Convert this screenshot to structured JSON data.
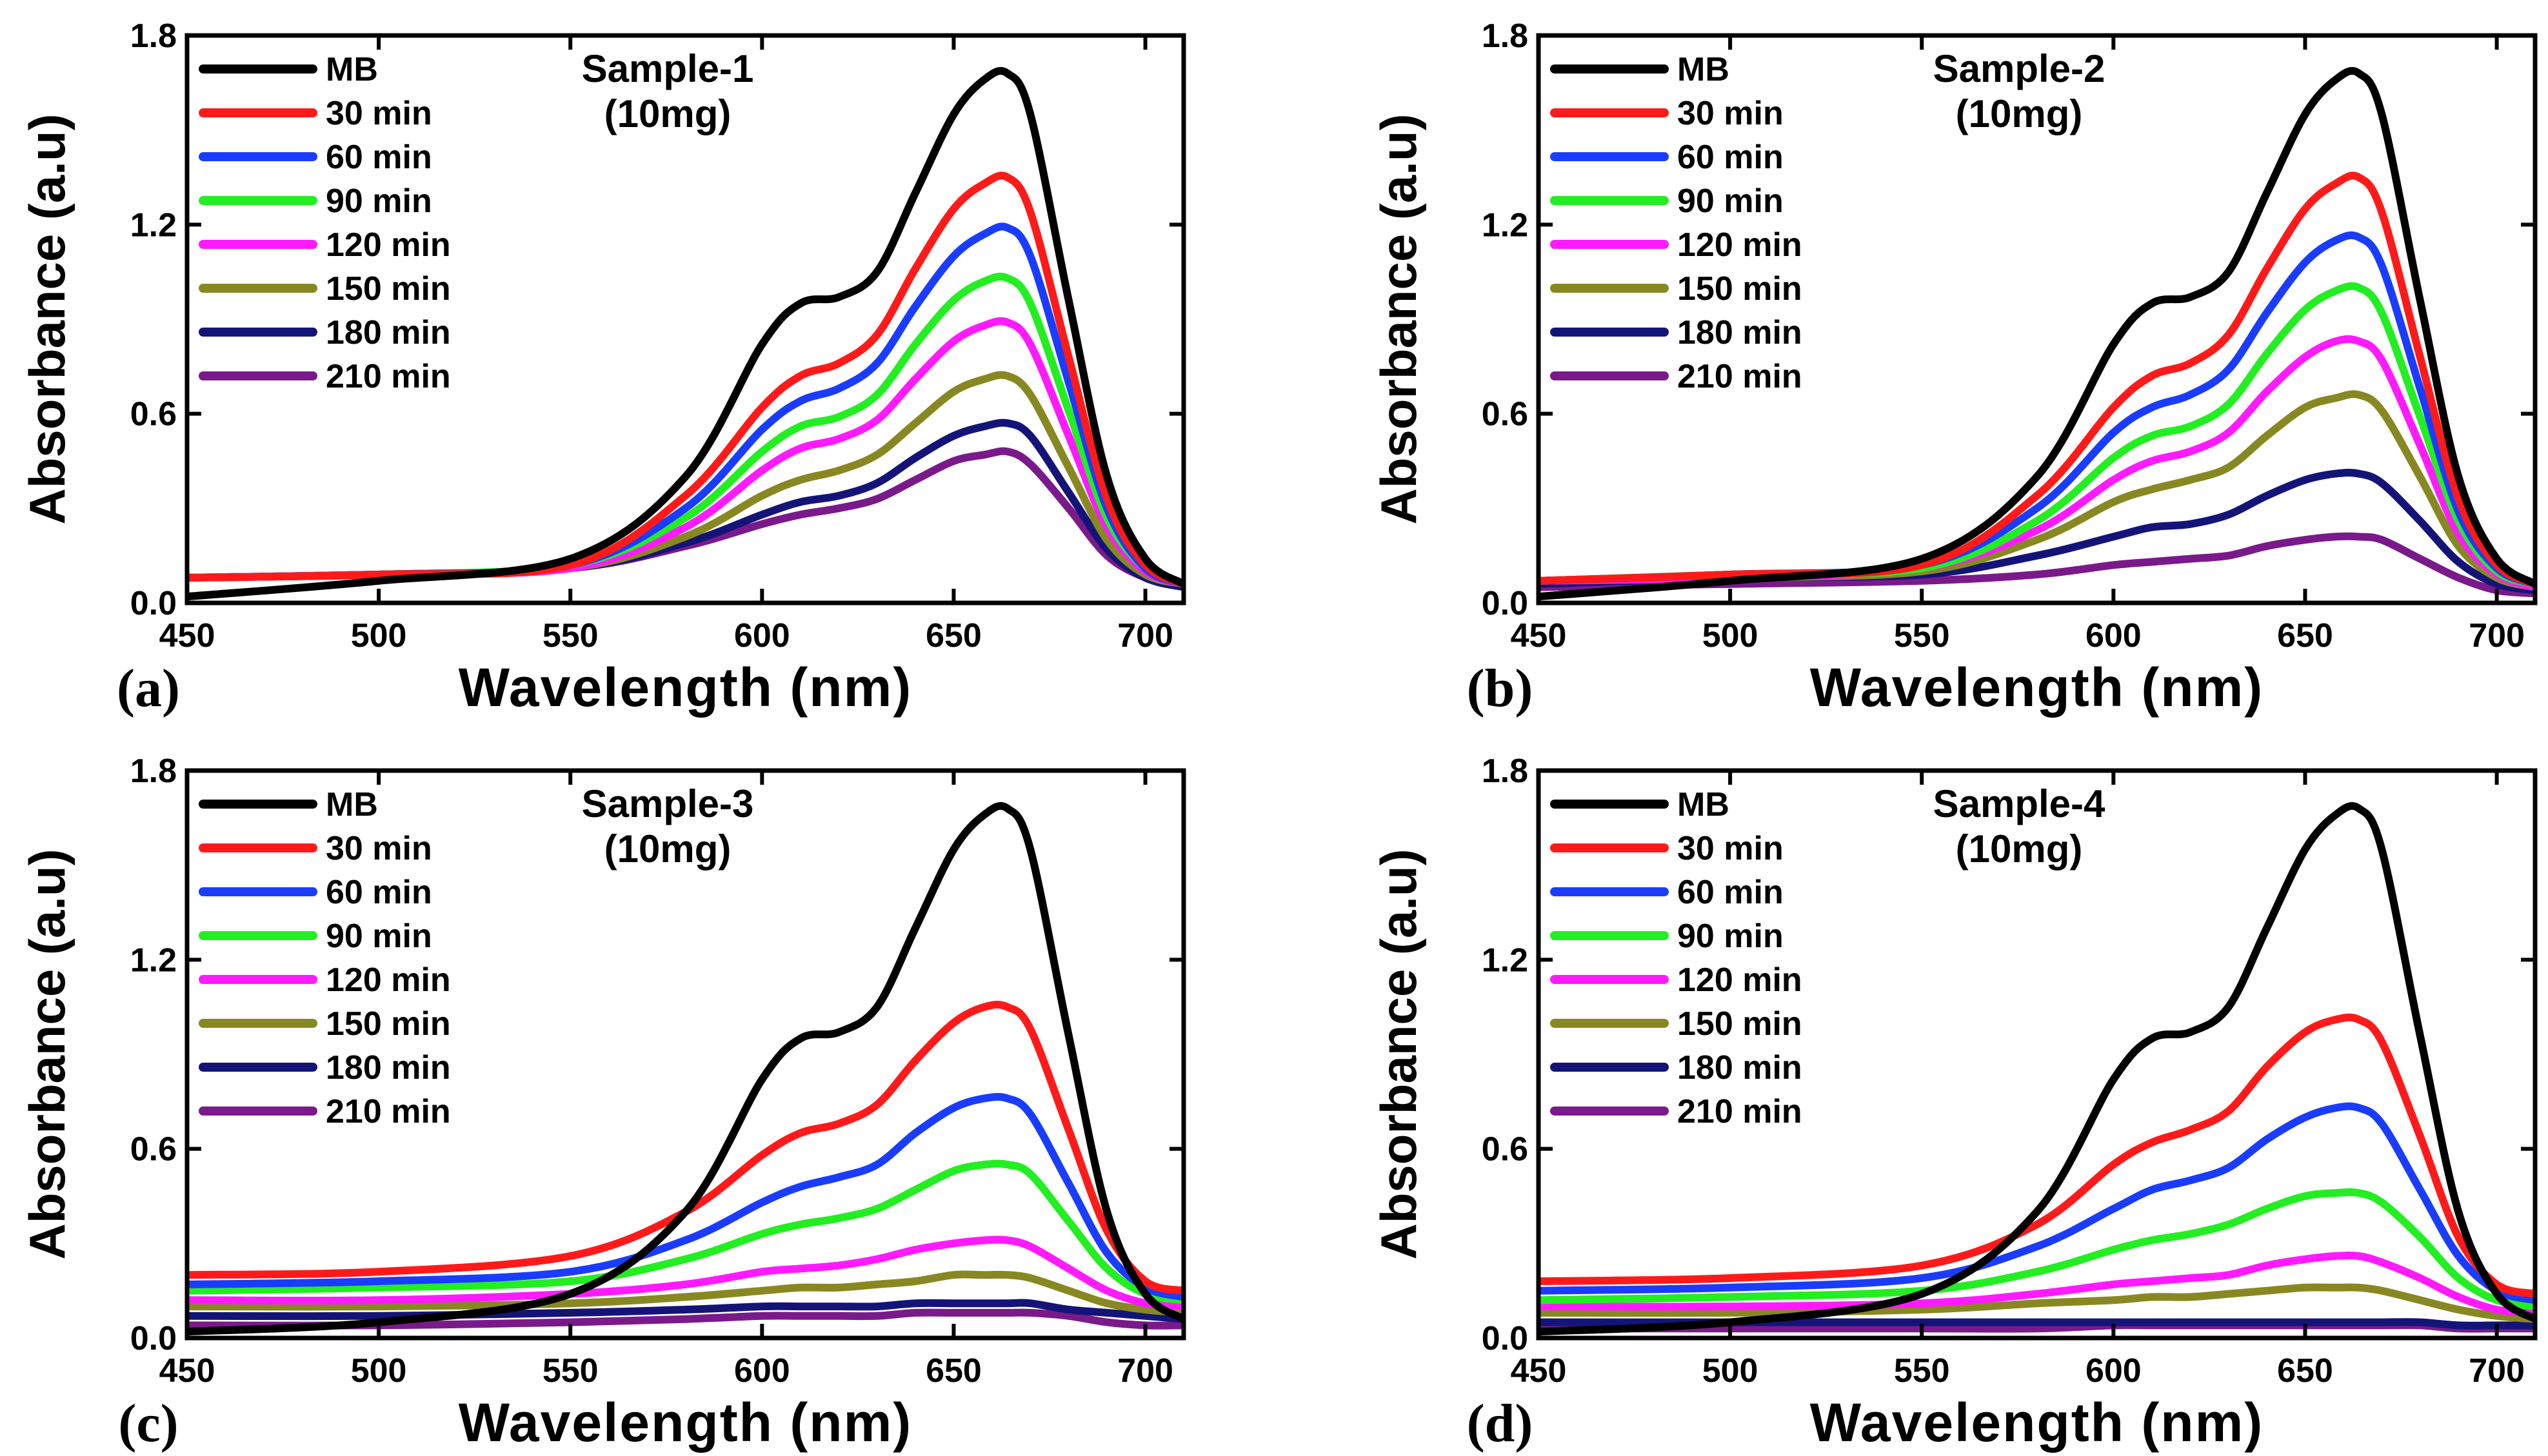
{
  "chart_data": [
    {
      "type": "line",
      "panel_label": "(a)",
      "title": "Sample-1",
      "subtitle": "(10mg)",
      "xlabel": "Wavelength (nm)",
      "ylabel": "Absorbance (a.u)",
      "xlim": [
        450,
        710
      ],
      "ylim": [
        0,
        1.8
      ],
      "xticks": [
        "450",
        "500",
        "550",
        "600",
        "650",
        "700"
      ],
      "yticks": [
        "0.0",
        "0.6",
        "1.2",
        "1.8"
      ],
      "legend_position": "top-left",
      "x": [
        450,
        500,
        550,
        580,
        600,
        610,
        620,
        630,
        640,
        650,
        658,
        664,
        670,
        680,
        690,
        700,
        710
      ],
      "series": [
        {
          "name": "MB",
          "color": "#000000",
          "values": [
            0.02,
            0.07,
            0.14,
            0.4,
            0.82,
            0.95,
            0.97,
            1.05,
            1.3,
            1.55,
            1.66,
            1.68,
            1.55,
            0.96,
            0.4,
            0.14,
            0.06
          ]
        },
        {
          "name": "30 min",
          "color": "#ff1a1a",
          "values": [
            0.08,
            0.09,
            0.12,
            0.34,
            0.62,
            0.72,
            0.76,
            0.85,
            1.06,
            1.25,
            1.33,
            1.35,
            1.24,
            0.78,
            0.33,
            0.12,
            0.06
          ]
        },
        {
          "name": "60 min",
          "color": "#1a3cff",
          "values": [
            0.08,
            0.09,
            0.12,
            0.3,
            0.55,
            0.64,
            0.68,
            0.76,
            0.94,
            1.1,
            1.17,
            1.19,
            1.1,
            0.7,
            0.3,
            0.11,
            0.06
          ]
        },
        {
          "name": "90 min",
          "color": "#22ee22",
          "values": [
            0.08,
            0.09,
            0.12,
            0.27,
            0.48,
            0.56,
            0.59,
            0.66,
            0.82,
            0.96,
            1.02,
            1.03,
            0.95,
            0.61,
            0.27,
            0.11,
            0.06
          ]
        },
        {
          "name": "120 min",
          "color": "#ff1aff",
          "values": [
            0.08,
            0.09,
            0.11,
            0.24,
            0.42,
            0.49,
            0.52,
            0.58,
            0.71,
            0.83,
            0.88,
            0.89,
            0.82,
            0.53,
            0.24,
            0.1,
            0.06
          ]
        },
        {
          "name": "150 min",
          "color": "#888822",
          "values": [
            0.08,
            0.09,
            0.11,
            0.21,
            0.34,
            0.39,
            0.42,
            0.47,
            0.57,
            0.67,
            0.71,
            0.72,
            0.66,
            0.43,
            0.2,
            0.09,
            0.06
          ]
        },
        {
          "name": "180 min",
          "color": "#141478",
          "values": [
            0.08,
            0.09,
            0.11,
            0.19,
            0.28,
            0.32,
            0.34,
            0.38,
            0.46,
            0.53,
            0.56,
            0.57,
            0.53,
            0.35,
            0.17,
            0.08,
            0.05
          ]
        },
        {
          "name": "210 min",
          "color": "#7a1a8a",
          "values": [
            0.08,
            0.09,
            0.11,
            0.18,
            0.25,
            0.28,
            0.3,
            0.33,
            0.39,
            0.45,
            0.47,
            0.48,
            0.44,
            0.3,
            0.15,
            0.08,
            0.05
          ]
        }
      ]
    },
    {
      "type": "line",
      "panel_label": "(b)",
      "title": "Sample-2",
      "subtitle": "(10mg)",
      "xlabel": "Wavelength (nm)",
      "ylabel": "Absorbance (a.u)",
      "xlim": [
        450,
        710
      ],
      "ylim": [
        0,
        1.8
      ],
      "xticks": [
        "450",
        "500",
        "550",
        "600",
        "650",
        "700"
      ],
      "yticks": [
        "0.0",
        "0.6",
        "1.2",
        "1.8"
      ],
      "legend_position": "top-left",
      "x": [
        450,
        500,
        550,
        580,
        600,
        610,
        620,
        630,
        640,
        650,
        658,
        664,
        670,
        680,
        690,
        700,
        710
      ],
      "series": [
        {
          "name": "MB",
          "color": "#000000",
          "values": [
            0.02,
            0.07,
            0.14,
            0.4,
            0.82,
            0.95,
            0.97,
            1.05,
            1.3,
            1.55,
            1.66,
            1.68,
            1.55,
            0.96,
            0.4,
            0.14,
            0.06
          ]
        },
        {
          "name": "30 min",
          "color": "#ff1a1a",
          "values": [
            0.07,
            0.09,
            0.12,
            0.34,
            0.62,
            0.72,
            0.76,
            0.85,
            1.06,
            1.25,
            1.33,
            1.35,
            1.24,
            0.78,
            0.33,
            0.12,
            0.06
          ]
        },
        {
          "name": "60 min",
          "color": "#1a3cff",
          "values": [
            0.07,
            0.09,
            0.12,
            0.3,
            0.54,
            0.62,
            0.66,
            0.74,
            0.92,
            1.08,
            1.15,
            1.16,
            1.07,
            0.68,
            0.29,
            0.11,
            0.06
          ]
        },
        {
          "name": "90 min",
          "color": "#22ee22",
          "values": [
            0.07,
            0.09,
            0.11,
            0.26,
            0.46,
            0.53,
            0.56,
            0.63,
            0.79,
            0.93,
            0.99,
            1.0,
            0.92,
            0.59,
            0.26,
            0.1,
            0.06
          ]
        },
        {
          "name": "120 min",
          "color": "#ff1aff",
          "values": [
            0.07,
            0.08,
            0.11,
            0.23,
            0.39,
            0.45,
            0.48,
            0.54,
            0.67,
            0.78,
            0.83,
            0.83,
            0.77,
            0.5,
            0.22,
            0.09,
            0.05
          ]
        },
        {
          "name": "150 min",
          "color": "#888822",
          "values": [
            0.07,
            0.08,
            0.1,
            0.2,
            0.32,
            0.36,
            0.39,
            0.43,
            0.53,
            0.62,
            0.65,
            0.66,
            0.61,
            0.4,
            0.18,
            0.08,
            0.05
          ]
        },
        {
          "name": "180 min",
          "color": "#141478",
          "values": [
            0.06,
            0.08,
            0.09,
            0.15,
            0.21,
            0.24,
            0.25,
            0.28,
            0.34,
            0.39,
            0.41,
            0.41,
            0.38,
            0.26,
            0.13,
            0.06,
            0.04
          ]
        },
        {
          "name": "210 min",
          "color": "#7a1a8a",
          "values": [
            0.05,
            0.06,
            0.07,
            0.09,
            0.12,
            0.13,
            0.14,
            0.15,
            0.18,
            0.2,
            0.21,
            0.21,
            0.2,
            0.14,
            0.08,
            0.04,
            0.03
          ]
        }
      ]
    },
    {
      "type": "line",
      "panel_label": "(c)",
      "title": "Sample-3",
      "subtitle": "(10mg)",
      "xlabel": "Wavelength (nm)",
      "ylabel": "Absorbance (a.u)",
      "xlim": [
        450,
        710
      ],
      "ylim": [
        0,
        1.8
      ],
      "xticks": [
        "450",
        "500",
        "550",
        "600",
        "650",
        "700"
      ],
      "yticks": [
        "0.0",
        "0.6",
        "1.2",
        "1.8"
      ],
      "legend_position": "top-left",
      "x": [
        450,
        500,
        550,
        580,
        600,
        610,
        620,
        630,
        640,
        650,
        658,
        664,
        670,
        680,
        690,
        700,
        710
      ],
      "series": [
        {
          "name": "MB",
          "color": "#000000",
          "values": [
            0.02,
            0.05,
            0.14,
            0.4,
            0.82,
            0.95,
            0.97,
            1.05,
            1.3,
            1.55,
            1.66,
            1.68,
            1.55,
            0.96,
            0.4,
            0.14,
            0.06
          ]
        },
        {
          "name": "30 min",
          "color": "#ff1a1a",
          "values": [
            0.2,
            0.21,
            0.26,
            0.4,
            0.58,
            0.65,
            0.68,
            0.74,
            0.88,
            1.0,
            1.05,
            1.05,
            0.98,
            0.66,
            0.34,
            0.18,
            0.15
          ]
        },
        {
          "name": "60 min",
          "color": "#1a3cff",
          "values": [
            0.17,
            0.18,
            0.21,
            0.31,
            0.43,
            0.48,
            0.51,
            0.55,
            0.65,
            0.73,
            0.76,
            0.76,
            0.71,
            0.49,
            0.27,
            0.16,
            0.13
          ]
        },
        {
          "name": "90 min",
          "color": "#22ee22",
          "values": [
            0.15,
            0.16,
            0.18,
            0.25,
            0.33,
            0.36,
            0.38,
            0.41,
            0.47,
            0.53,
            0.55,
            0.55,
            0.52,
            0.37,
            0.22,
            0.14,
            0.12
          ]
        },
        {
          "name": "120 min",
          "color": "#ff1aff",
          "values": [
            0.12,
            0.12,
            0.14,
            0.17,
            0.21,
            0.22,
            0.23,
            0.25,
            0.28,
            0.3,
            0.31,
            0.31,
            0.29,
            0.22,
            0.15,
            0.11,
            0.1
          ]
        },
        {
          "name": "150 min",
          "color": "#888822",
          "values": [
            0.1,
            0.1,
            0.11,
            0.13,
            0.15,
            0.16,
            0.16,
            0.17,
            0.18,
            0.2,
            0.2,
            0.2,
            0.19,
            0.15,
            0.11,
            0.09,
            0.08
          ]
        },
        {
          "name": "180 min",
          "color": "#141478",
          "values": [
            0.07,
            0.07,
            0.08,
            0.09,
            0.1,
            0.1,
            0.1,
            0.1,
            0.11,
            0.11,
            0.11,
            0.11,
            0.11,
            0.09,
            0.08,
            0.07,
            0.06
          ]
        },
        {
          "name": "210 min",
          "color": "#7a1a8a",
          "values": [
            0.04,
            0.04,
            0.05,
            0.06,
            0.07,
            0.07,
            0.07,
            0.07,
            0.08,
            0.08,
            0.08,
            0.08,
            0.08,
            0.07,
            0.05,
            0.04,
            0.04
          ]
        }
      ]
    },
    {
      "type": "line",
      "panel_label": "(d)",
      "title": "Sample-4",
      "subtitle": "(10mg)",
      "xlabel": "Wavelength (nm)",
      "ylabel": "Absorbance (a.u)",
      "xlim": [
        450,
        710
      ],
      "ylim": [
        0,
        1.8
      ],
      "xticks": [
        "450",
        "500",
        "550",
        "600",
        "650",
        "700"
      ],
      "yticks": [
        "0.0",
        "0.6",
        "1.2",
        "1.8"
      ],
      "legend_position": "top-left",
      "x": [
        450,
        500,
        550,
        580,
        600,
        610,
        620,
        630,
        640,
        650,
        658,
        664,
        670,
        680,
        690,
        700,
        710
      ],
      "series": [
        {
          "name": "MB",
          "color": "#000000",
          "values": [
            0.02,
            0.05,
            0.14,
            0.4,
            0.82,
            0.95,
            0.97,
            1.05,
            1.3,
            1.55,
            1.66,
            1.68,
            1.55,
            0.96,
            0.4,
            0.14,
            0.06
          ]
        },
        {
          "name": "30 min",
          "color": "#ff1a1a",
          "values": [
            0.18,
            0.19,
            0.23,
            0.36,
            0.55,
            0.62,
            0.66,
            0.72,
            0.86,
            0.97,
            1.01,
            1.01,
            0.94,
            0.64,
            0.32,
            0.17,
            0.14
          ]
        },
        {
          "name": "60 min",
          "color": "#1a3cff",
          "values": [
            0.15,
            0.16,
            0.19,
            0.29,
            0.41,
            0.47,
            0.5,
            0.54,
            0.63,
            0.7,
            0.73,
            0.73,
            0.68,
            0.47,
            0.26,
            0.15,
            0.12
          ]
        },
        {
          "name": "90 min",
          "color": "#22ee22",
          "values": [
            0.12,
            0.13,
            0.15,
            0.21,
            0.28,
            0.31,
            0.33,
            0.36,
            0.41,
            0.45,
            0.46,
            0.46,
            0.43,
            0.32,
            0.19,
            0.12,
            0.1
          ]
        },
        {
          "name": "120 min",
          "color": "#ff1aff",
          "values": [
            0.1,
            0.1,
            0.11,
            0.14,
            0.17,
            0.18,
            0.19,
            0.2,
            0.23,
            0.25,
            0.26,
            0.26,
            0.24,
            0.19,
            0.13,
            0.09,
            0.08
          ]
        },
        {
          "name": "150 min",
          "color": "#888822",
          "values": [
            0.08,
            0.08,
            0.09,
            0.11,
            0.12,
            0.13,
            0.13,
            0.14,
            0.15,
            0.16,
            0.16,
            0.16,
            0.15,
            0.12,
            0.09,
            0.07,
            0.06
          ]
        },
        {
          "name": "180 min",
          "color": "#141478",
          "values": [
            0.05,
            0.05,
            0.05,
            0.05,
            0.05,
            0.05,
            0.05,
            0.05,
            0.05,
            0.05,
            0.05,
            0.05,
            0.05,
            0.05,
            0.04,
            0.04,
            0.04
          ]
        },
        {
          "name": "210 min",
          "color": "#7a1a8a",
          "values": [
            0.03,
            0.03,
            0.03,
            0.03,
            0.04,
            0.04,
            0.04,
            0.04,
            0.04,
            0.04,
            0.04,
            0.04,
            0.04,
            0.04,
            0.03,
            0.03,
            0.03
          ]
        }
      ]
    }
  ]
}
